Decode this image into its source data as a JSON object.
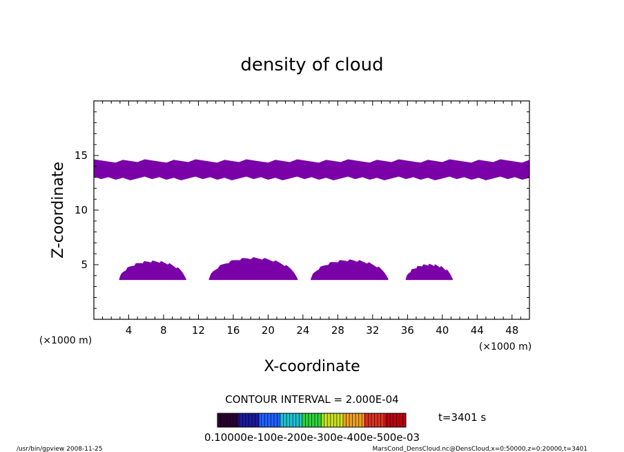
{
  "chart_data": {
    "type": "heatmap",
    "title": "density of cloud",
    "xlabel": "X-coordinate",
    "ylabel": "Z-coordinate",
    "x_unit": "(×1000 m)",
    "y_unit": "(×1000 m)",
    "xlim": [
      0,
      50
    ],
    "ylim": [
      0,
      20
    ],
    "x_ticks": [
      4,
      8,
      12,
      16,
      20,
      24,
      28,
      32,
      36,
      40,
      44,
      48
    ],
    "y_ticks": [
      5,
      10,
      15
    ],
    "cloud_regions": [
      {
        "kind": "band",
        "x": [
          0,
          50
        ],
        "z": [
          12.9,
          14.5
        ]
      },
      {
        "kind": "dome",
        "x": [
          2.9,
          10.6
        ],
        "z_base": 3.6,
        "z_top": 5.3
      },
      {
        "kind": "dome",
        "x": [
          13.2,
          23.4
        ],
        "z_base": 3.6,
        "z_top": 5.6
      },
      {
        "kind": "dome",
        "x": [
          24.9,
          33.8
        ],
        "z_base": 3.6,
        "z_top": 5.4
      },
      {
        "kind": "dome",
        "x": [
          35.8,
          41.2
        ],
        "z_base": 3.6,
        "z_top": 5.0
      }
    ],
    "fill_color": "#7a00a8",
    "contour_interval": "CONTOUR INTERVAL = 2.000E-04",
    "colorbar": {
      "colors": [
        "#2a0033",
        "#1a1aa0",
        "#2060ff",
        "#20c0d0",
        "#30d040",
        "#c8e020",
        "#f0a020",
        "#e03020",
        "#c00010"
      ],
      "labels": "0.10000e-100e-200e-300e-400e-500e-03"
    },
    "time_label": "t=3401 s"
  },
  "footer": {
    "left": "/usr/bin/gpview   2008-11-25",
    "right": "MarsCond_DensCloud.nc@DensCloud,x=0:50000,z=0:20000,t=3401"
  }
}
